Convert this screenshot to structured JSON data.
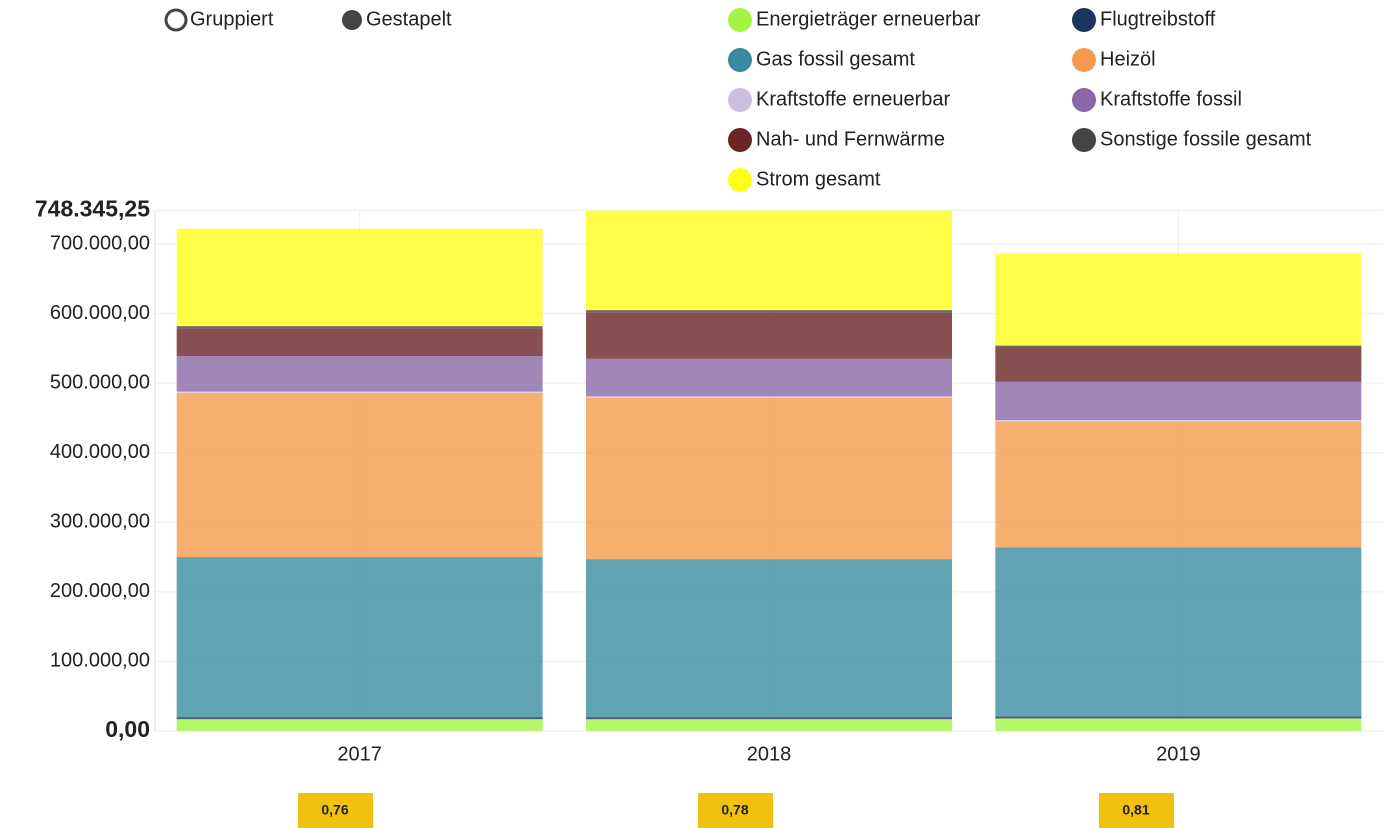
{
  "chart_data": {
    "type": "stacked_bar",
    "modes": [
      "Gruppiert",
      "Gestapelt"
    ],
    "categories": [
      "2017",
      "2018",
      "2019"
    ],
    "series": [
      {
        "name": "Energieträger erneuerbar",
        "color": "#a3f542",
        "values": [
          17000,
          17000,
          18000
        ]
      },
      {
        "name": "Flugtreibstoff",
        "color": "#1b3760",
        "values": [
          3000,
          3000,
          3000
        ]
      },
      {
        "name": "Gas fossil gesamt",
        "color": "#3a8ba0",
        "values": [
          230000,
          227000,
          243000
        ]
      },
      {
        "name": "Heizöl",
        "color": "#f59b4c",
        "values": [
          236000,
          232000,
          181000
        ]
      },
      {
        "name": "Kraftstoffe erneuerbar",
        "color": "#cbc0e0",
        "values": [
          2000,
          2000,
          2000
        ]
      },
      {
        "name": "Kraftstoffe fossil",
        "color": "#8a68a8",
        "values": [
          51000,
          54000,
          55000
        ]
      },
      {
        "name": "Nah- und Fernwärme",
        "color": "#6b2426",
        "values": [
          40000,
          67000,
          50000
        ]
      },
      {
        "name": "Sonstige fossile gesamt",
        "color": "#444444",
        "values": [
          3000,
          3000,
          2000
        ]
      },
      {
        "name": "Strom gesamt",
        "color": "#ffff1a",
        "values": [
          140000,
          143000,
          133000
        ]
      }
    ],
    "ylim": [
      0,
      748345.25
    ],
    "yticks": [
      {
        "value": 0,
        "label": "0,00"
      },
      {
        "value": 100000,
        "label": "100.000,00"
      },
      {
        "value": 200000,
        "label": "200.000,00"
      },
      {
        "value": 300000,
        "label": "300.000,00"
      },
      {
        "value": 400000,
        "label": "400.000,00"
      },
      {
        "value": 500000,
        "label": "500.000,00"
      },
      {
        "value": 600000,
        "label": "600.000,00"
      },
      {
        "value": 700000,
        "label": "700.000,00"
      },
      {
        "value": 748345.25,
        "label": "748.345,25"
      }
    ],
    "grid": true,
    "badges": [
      "0,76",
      "0,78",
      "0,81"
    ]
  }
}
